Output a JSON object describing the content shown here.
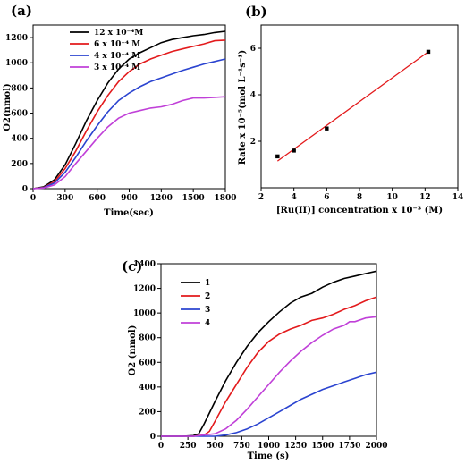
{
  "chart_data": [
    {
      "panel": "(a)",
      "type": "line",
      "xlabel": "Time(sec)",
      "ylabel": "O2(nmol)",
      "xlim": [
        0,
        1800
      ],
      "ylim": [
        0,
        1300
      ],
      "xticks": [
        0,
        300,
        600,
        900,
        1200,
        1500,
        1800
      ],
      "yticks": [
        0,
        200,
        400,
        600,
        800,
        1000,
        1200
      ],
      "legend": "top-left",
      "series": [
        {
          "name": "12 x 10⁻⁴M",
          "color": "#000000",
          "x": [
            0,
            100,
            200,
            300,
            400,
            500,
            600,
            700,
            800,
            900,
            1000,
            1100,
            1200,
            1300,
            1400,
            1500,
            1600,
            1700,
            1800
          ],
          "y": [
            0,
            15,
            70,
            190,
            360,
            540,
            700,
            840,
            950,
            1030,
            1080,
            1120,
            1160,
            1185,
            1200,
            1215,
            1225,
            1240,
            1250
          ]
        },
        {
          "name": "6 x 10⁻⁴ M",
          "color": "#e31a1c",
          "x": [
            0,
            100,
            200,
            300,
            400,
            500,
            600,
            700,
            800,
            900,
            1000,
            1100,
            1200,
            1300,
            1400,
            1500,
            1600,
            1700,
            1800
          ],
          "y": [
            0,
            10,
            55,
            160,
            300,
            460,
            610,
            740,
            850,
            930,
            990,
            1030,
            1060,
            1090,
            1110,
            1130,
            1150,
            1175,
            1180
          ]
        },
        {
          "name": "4 x 10⁻⁴ M",
          "color": "#2b44d0",
          "x": [
            0,
            100,
            200,
            300,
            400,
            500,
            600,
            700,
            800,
            900,
            1000,
            1100,
            1200,
            1300,
            1400,
            1500,
            1600,
            1700,
            1800
          ],
          "y": [
            0,
            8,
            45,
            130,
            250,
            380,
            500,
            610,
            700,
            760,
            810,
            850,
            880,
            910,
            940,
            965,
            990,
            1010,
            1030
          ]
        },
        {
          "name": "3 x 10⁻⁴ M",
          "color": "#c040d8",
          "x": [
            0,
            100,
            200,
            300,
            400,
            500,
            600,
            700,
            800,
            900,
            1000,
            1100,
            1200,
            1300,
            1400,
            1500,
            1600,
            1700,
            1800
          ],
          "y": [
            0,
            5,
            30,
            95,
            200,
            300,
            400,
            490,
            560,
            600,
            620,
            640,
            650,
            670,
            700,
            720,
            720,
            725,
            730
          ]
        }
      ]
    },
    {
      "panel": "(b)",
      "type": "scatter",
      "xlabel": "[Ru(II)] concentration x 10⁻³ (M)",
      "ylabel": "Rate x 10⁻⁵(mol L⁻¹s⁻¹)",
      "xlim": [
        2,
        14
      ],
      "ylim": [
        0,
        7
      ],
      "xticks": [
        2,
        4,
        6,
        8,
        10,
        12,
        14
      ],
      "yticks": [
        2,
        4,
        6
      ],
      "points": {
        "color": "#000000",
        "x": [
          3,
          4,
          6,
          12.2
        ],
        "y": [
          1.35,
          1.6,
          2.55,
          5.85
        ]
      },
      "fit": {
        "color": "#e31a1c",
        "x": [
          3,
          12.2
        ],
        "y": [
          1.15,
          5.85
        ]
      }
    },
    {
      "panel": "(c)",
      "type": "line",
      "xlabel": "Time (s)",
      "ylabel": "O2 (nmol)",
      "xlim": [
        0,
        2000
      ],
      "ylim": [
        0,
        1400
      ],
      "xticks": [
        0,
        250,
        500,
        750,
        1000,
        1250,
        1500,
        1750,
        2000
      ],
      "yticks": [
        0,
        200,
        400,
        600,
        800,
        1000,
        1200,
        1400
      ],
      "legend": "top-left",
      "series": [
        {
          "name": "1",
          "color": "#000000",
          "x": [
            0,
            200,
            300,
            350,
            400,
            500,
            600,
            700,
            800,
            900,
            1000,
            1100,
            1200,
            1300,
            1400,
            1500,
            1600,
            1700,
            1800,
            1900,
            2000
          ],
          "y": [
            0,
            0,
            5,
            20,
            100,
            280,
            450,
            600,
            730,
            840,
            930,
            1010,
            1080,
            1130,
            1160,
            1210,
            1250,
            1280,
            1300,
            1320,
            1340
          ]
        },
        {
          "name": "2",
          "color": "#e31a1c",
          "x": [
            0,
            300,
            400,
            450,
            500,
            600,
            700,
            800,
            900,
            1000,
            1100,
            1200,
            1300,
            1400,
            1500,
            1600,
            1700,
            1800,
            1900,
            2000
          ],
          "y": [
            0,
            0,
            10,
            40,
            120,
            280,
            420,
            560,
            680,
            770,
            830,
            870,
            900,
            940,
            960,
            990,
            1030,
            1060,
            1100,
            1130
          ]
        },
        {
          "name": "3",
          "color": "#2b44d0",
          "x": [
            0,
            500,
            600,
            700,
            800,
            900,
            1000,
            1100,
            1200,
            1300,
            1400,
            1500,
            1600,
            1700,
            1800,
            1900,
            2000
          ],
          "y": [
            0,
            0,
            10,
            30,
            60,
            100,
            150,
            200,
            250,
            300,
            340,
            380,
            410,
            440,
            470,
            500,
            520
          ]
        },
        {
          "name": "4",
          "color": "#c040d8",
          "x": [
            0,
            300,
            500,
            600,
            700,
            800,
            900,
            1000,
            1100,
            1200,
            1300,
            1400,
            1500,
            1600,
            1700,
            1750,
            1800,
            1900,
            2000
          ],
          "y": [
            0,
            0,
            20,
            60,
            130,
            220,
            320,
            420,
            520,
            610,
            690,
            760,
            820,
            870,
            900,
            930,
            930,
            960,
            970
          ]
        }
      ]
    }
  ]
}
